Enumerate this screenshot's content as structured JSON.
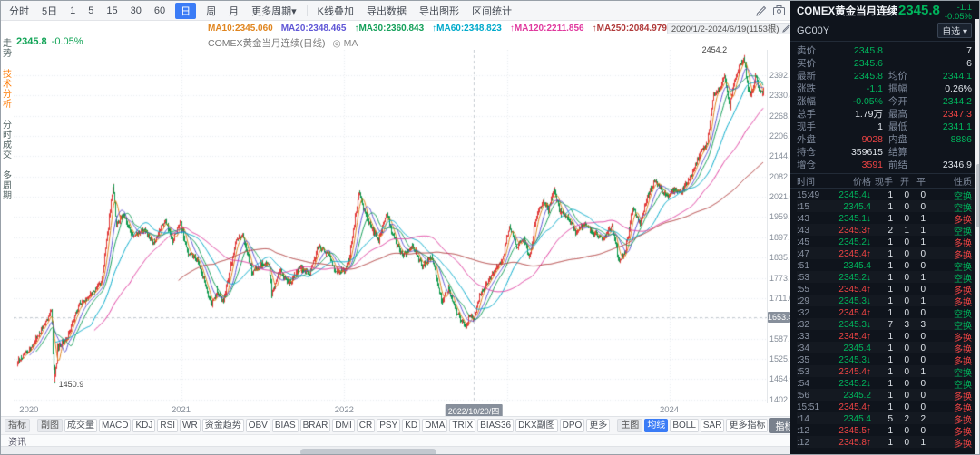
{
  "colors": {
    "accent": "#3b7cf6",
    "up": "#e23a3a",
    "down": "#0e9a4e",
    "panel_bg": "#0f141c"
  },
  "toolbar": {
    "periods": [
      {
        "label": "分时"
      },
      {
        "label": "5日"
      },
      {
        "label": "1"
      },
      {
        "label": "5"
      },
      {
        "label": "15"
      },
      {
        "label": "30"
      },
      {
        "label": "60"
      },
      {
        "label": "日",
        "active": true
      },
      {
        "label": "周"
      },
      {
        "label": "月"
      },
      {
        "label": "更多周期▾"
      }
    ],
    "tools": [
      "K线叠加",
      "导出数据",
      "导出图形",
      "区间统计"
    ]
  },
  "ma_legend": [
    {
      "label": "MA10:2345.060",
      "color": "#e0851f",
      "period": 10
    },
    {
      "label": "MA20:2348.465",
      "color": "#5f56d6",
      "period": 20
    },
    {
      "label": "↑MA30:2360.843",
      "color": "#15a05a",
      "period": 30
    },
    {
      "label": "↑MA60:2348.823",
      "color": "#00aacb",
      "period": 60
    },
    {
      "label": "↑MA120:2211.856",
      "color": "#e0399e",
      "period": 120
    },
    {
      "label": "↑MA250:2084.979",
      "color": "#b03a3a",
      "period": 250
    }
  ],
  "chart_header": {
    "price": "2345.8",
    "change_pct": "-0.05%",
    "title": "COMEX黄金当月连续(日线)",
    "ma_toggle": "◎ MA",
    "date_range": "2020/1/2-2024/6/19(1153根)",
    "settings": "设置均线"
  },
  "chart_data": {
    "type": "candlestick",
    "title": "COMEX黄金当月连续(日线)",
    "date_range": "2020/1/2-2024/6/19",
    "candle_count": 1153,
    "last_close": 2345.8,
    "price_range": [
      1390,
      2470
    ],
    "up_color": "#e23a3a",
    "down_color": "#0e9a4e",
    "y_axis_labels": [
      "2392.3",
      "2330.4",
      "2268.5",
      "2206.7",
      "2144.8",
      "2082.9",
      "2021.0",
      "1959.1",
      "1897.2",
      "1835.3",
      "1773.5",
      "1711.6",
      "1649.7",
      "1587.8",
      "1525.9",
      "1464.0",
      "1402.1"
    ],
    "x_axis_labels": [
      {
        "label": "2020",
        "index": 6,
        "edge": true
      },
      {
        "label": "2021",
        "index": 253
      },
      {
        "label": "2022",
        "index": 505
      },
      {
        "label": "2024",
        "index": 1007
      }
    ],
    "grid_indices": [
      253,
      505,
      757,
      1007
    ],
    "crosshair": {
      "price_label": "1653.4",
      "price": 1653.4,
      "date_label": "2022/10/20/四",
      "index": 705
    },
    "annotations": {
      "high": {
        "label": "2454.2",
        "price": 2454.2,
        "index": 1122
      },
      "low": {
        "label": "1450.9",
        "price": 1450.9,
        "index": 57
      }
    },
    "keypoints": [
      [
        0,
        1517
      ],
      [
        20,
        1560
      ],
      [
        46,
        1645
      ],
      [
        52,
        1673
      ],
      [
        57,
        1450.9
      ],
      [
        62,
        1560
      ],
      [
        75,
        1585
      ],
      [
        95,
        1690
      ],
      [
        110,
        1715
      ],
      [
        130,
        1760
      ],
      [
        148,
        2060
      ],
      [
        153,
        1935
      ],
      [
        163,
        1970
      ],
      [
        178,
        1900
      ],
      [
        195,
        1920
      ],
      [
        210,
        1880
      ],
      [
        228,
        1950
      ],
      [
        240,
        1885
      ],
      [
        252,
        1945
      ],
      [
        262,
        1850
      ],
      [
        278,
        1830
      ],
      [
        300,
        1685
      ],
      [
        308,
        1735
      ],
      [
        318,
        1700
      ],
      [
        338,
        1890
      ],
      [
        348,
        1905
      ],
      [
        362,
        1790
      ],
      [
        375,
        1810
      ],
      [
        388,
        1815
      ],
      [
        393,
        1726
      ],
      [
        405,
        1795
      ],
      [
        420,
        1755
      ],
      [
        435,
        1805
      ],
      [
        450,
        1785
      ],
      [
        465,
        1868
      ],
      [
        480,
        1845
      ],
      [
        492,
        1790
      ],
      [
        505,
        1800
      ],
      [
        512,
        1830
      ],
      [
        528,
        2040
      ],
      [
        535,
        1980
      ],
      [
        545,
        1930
      ],
      [
        558,
        1890
      ],
      [
        570,
        1970
      ],
      [
        580,
        1900
      ],
      [
        595,
        1840
      ],
      [
        610,
        1870
      ],
      [
        625,
        1810
      ],
      [
        640,
        1840
      ],
      [
        655,
        1700
      ],
      [
        665,
        1740
      ],
      [
        680,
        1660
      ],
      [
        692,
        1622
      ],
      [
        700,
        1660
      ],
      [
        705,
        1640
      ],
      [
        712,
        1710
      ],
      [
        725,
        1760
      ],
      [
        738,
        1798
      ],
      [
        748,
        1823
      ],
      [
        760,
        1930
      ],
      [
        772,
        1870
      ],
      [
        782,
        1900
      ],
      [
        790,
        1830
      ],
      [
        800,
        1950
      ],
      [
        812,
        2010
      ],
      [
        820,
        1985
      ],
      [
        828,
        2045
      ],
      [
        838,
        1975
      ],
      [
        850,
        1960
      ],
      [
        862,
        1915
      ],
      [
        875,
        1940
      ],
      [
        890,
        1910
      ],
      [
        905,
        1890
      ],
      [
        918,
        1930
      ],
      [
        930,
        1820
      ],
      [
        940,
        1865
      ],
      [
        950,
        1985
      ],
      [
        962,
        1940
      ],
      [
        975,
        2035
      ],
      [
        985,
        2070
      ],
      [
        995,
        2040
      ],
      [
        1005,
        2025
      ],
      [
        1015,
        2045
      ],
      [
        1025,
        2035
      ],
      [
        1040,
        2085
      ],
      [
        1055,
        2160
      ],
      [
        1065,
        2180
      ],
      [
        1075,
        2330
      ],
      [
        1085,
        2350
      ],
      [
        1092,
        2390
      ],
      [
        1100,
        2300
      ],
      [
        1108,
        2380
      ],
      [
        1115,
        2420
      ],
      [
        1122,
        2450
      ],
      [
        1128,
        2355
      ],
      [
        1133,
        2330
      ],
      [
        1140,
        2392
      ],
      [
        1145,
        2350
      ],
      [
        1150,
        2335
      ],
      [
        1152,
        2345.8
      ]
    ]
  },
  "left_rail": {
    "items": [
      {
        "label": "走势"
      },
      {
        "label": "技术分析",
        "active": true
      },
      {
        "label": "分时成交"
      },
      {
        "label": "多周期"
      }
    ]
  },
  "indicator_bar": {
    "label": "指标",
    "sub_label": "副图",
    "sub_items": [
      "成交量",
      "MACD",
      "KDJ",
      "RSI",
      "WR",
      "资金趋势",
      "OBV",
      "BIAS",
      "BRAR",
      "DMI",
      "CR",
      "PSY",
      "KD",
      "DMA",
      "TRIX",
      "BIAS36",
      "DKX副图",
      "DPO",
      "更多"
    ],
    "main_label": "主图",
    "main_items": [
      {
        "label": "均线",
        "active": true
      },
      {
        "label": "BOLL"
      },
      {
        "label": "SAR"
      },
      {
        "label": "更多指标"
      }
    ],
    "window_btn": "指标窗口"
  },
  "status": {
    "news_tab": "资讯"
  },
  "quote_panel": {
    "name": "COMEX黄金当月连续",
    "code": "GC00Y",
    "price": "2345.8",
    "change": "-1.1",
    "change_pct": "-0.05%",
    "watchlist_btn": "自选 ▾",
    "fields": [
      {
        "l1": "卖价",
        "v1": "2345.8",
        "c1": "g",
        "l2": "",
        "v2": "7",
        "c2": "w"
      },
      {
        "l1": "买价",
        "v1": "2345.6",
        "c1": "g",
        "l2": "",
        "v2": "6",
        "c2": "w"
      },
      {
        "l1": "最新",
        "v1": "2345.8",
        "c1": "g",
        "l2": "均价",
        "v2": "2344.1",
        "c2": "g"
      },
      {
        "l1": "涨跌",
        "v1": "-1.1",
        "c1": "g",
        "l2": "振幅",
        "v2": "0.26%",
        "c2": "w"
      },
      {
        "l1": "涨幅",
        "v1": "-0.05%",
        "c1": "g",
        "l2": "今开",
        "v2": "2344.2",
        "c2": "g"
      },
      {
        "l1": "总手",
        "v1": "1.79万",
        "c1": "w",
        "l2": "最高",
        "v2": "2347.3",
        "c2": "r"
      },
      {
        "l1": "现手",
        "v1": "1",
        "c1": "w",
        "l2": "最低",
        "v2": "2341.1",
        "c2": "g"
      },
      {
        "l1": "外盘",
        "v1": "9028",
        "c1": "r",
        "l2": "内盘",
        "v2": "8886",
        "c2": "g"
      },
      {
        "l1": "持仓",
        "v1": "359615",
        "c1": "w",
        "l2": "结算",
        "v2": "",
        "c2": "w"
      },
      {
        "l1": "增仓",
        "v1": "3591",
        "c1": "r",
        "l2": "前结",
        "v2": "2346.9",
        "c2": "w"
      }
    ],
    "tick_header": [
      "时间",
      "价格",
      "现手",
      "开",
      "平",
      "性质"
    ],
    "ticks": [
      {
        "t": "15:49",
        "p": "2345.4",
        "d": "down",
        "a": "1",
        "b": "0",
        "c": "0",
        "n": "空换"
      },
      {
        "t": ":15",
        "p": "2345.4",
        "d": "",
        "a": "1",
        "b": "0",
        "c": "0",
        "n": "空换"
      },
      {
        "t": ":43",
        "p": "2345.1",
        "d": "down",
        "a": "1",
        "b": "0",
        "c": "1",
        "n": "多换"
      },
      {
        "t": ":43",
        "p": "2345.3",
        "d": "up",
        "a": "2",
        "b": "1",
        "c": "1",
        "n": "空换"
      },
      {
        "t": ":45",
        "p": "2345.2",
        "d": "down",
        "a": "1",
        "b": "0",
        "c": "1",
        "n": "多换"
      },
      {
        "t": ":47",
        "p": "2345.4",
        "d": "up",
        "a": "1",
        "b": "0",
        "c": "0",
        "n": "多换"
      },
      {
        "t": ":51",
        "p": "2345.4",
        "d": "",
        "a": "1",
        "b": "0",
        "c": "0",
        "n": "空换"
      },
      {
        "t": ":53",
        "p": "2345.2",
        "d": "down",
        "a": "1",
        "b": "0",
        "c": "1",
        "n": "空换"
      },
      {
        "t": ":55",
        "p": "2345.4",
        "d": "up",
        "a": "1",
        "b": "0",
        "c": "0",
        "n": "多换"
      },
      {
        "t": ":29",
        "p": "2345.3",
        "d": "down",
        "a": "1",
        "b": "0",
        "c": "1",
        "n": "多换"
      },
      {
        "t": ":32",
        "p": "2345.4",
        "d": "up",
        "a": "1",
        "b": "0",
        "c": "0",
        "n": "空换"
      },
      {
        "t": ":32",
        "p": "2345.3",
        "d": "down",
        "a": "7",
        "b": "3",
        "c": "3",
        "n": "空换"
      },
      {
        "t": ":33",
        "p": "2345.4",
        "d": "up",
        "a": "1",
        "b": "0",
        "c": "0",
        "n": "多换"
      },
      {
        "t": ":34",
        "p": "2345.4",
        "d": "",
        "a": "1",
        "b": "0",
        "c": "0",
        "n": "多换"
      },
      {
        "t": ":35",
        "p": "2345.3",
        "d": "down",
        "a": "1",
        "b": "0",
        "c": "0",
        "n": "多换"
      },
      {
        "t": ":53",
        "p": "2345.4",
        "d": "up",
        "a": "1",
        "b": "0",
        "c": "1",
        "n": "空换"
      },
      {
        "t": ":54",
        "p": "2345.2",
        "d": "down",
        "a": "1",
        "b": "0",
        "c": "0",
        "n": "空换"
      },
      {
        "t": ":56",
        "p": "2345.2",
        "d": "",
        "a": "1",
        "b": "0",
        "c": "0",
        "n": "多换"
      },
      {
        "t": "15:51",
        "p": "2345.4",
        "d": "up",
        "a": "1",
        "b": "0",
        "c": "0",
        "n": "多换"
      },
      {
        "t": ":14",
        "p": "2345.4",
        "d": "",
        "a": "5",
        "b": "2",
        "c": "2",
        "n": "多换"
      },
      {
        "t": ":12",
        "p": "2345.5",
        "d": "up",
        "a": "1",
        "b": "0",
        "c": "0",
        "n": "多换"
      },
      {
        "t": ":12",
        "p": "2345.8",
        "d": "up",
        "a": "1",
        "b": "0",
        "c": "1",
        "n": "多换"
      }
    ]
  }
}
